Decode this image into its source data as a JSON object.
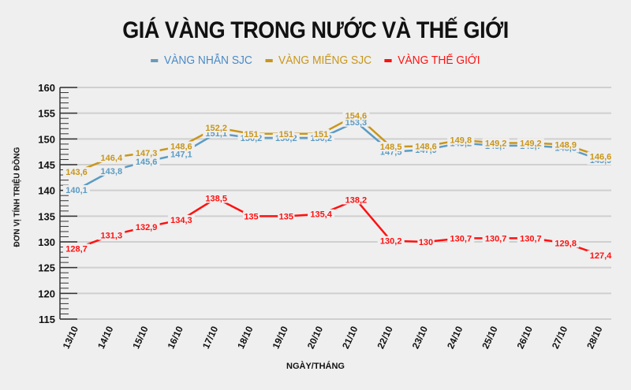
{
  "title": "GIÁ VÀNG TRONG NƯỚC VÀ THẾ GIỚI",
  "legend": [
    {
      "label": "VÀNG NHẪN SJC",
      "color": "#4a90c8"
    },
    {
      "label": "VÀNG MIẾNG SJC",
      "color": "#c9961a"
    },
    {
      "label": "VÀNG THẾ GIỚI",
      "color": "#ff1010"
    }
  ],
  "axes": {
    "ylabel": "ĐƠN VỊ TÍNH TRIỆU ĐỒNG",
    "xlabel": "NGÀY/THÁNG"
  },
  "chart_data": {
    "type": "line",
    "title": "GIÁ VÀNG TRONG NƯỚC VÀ THẾ GIỚI",
    "xlabel": "NGÀY/THÁNG",
    "ylabel": "ĐƠN VỊ TÍNH TRIỆU ĐỒNG",
    "ylim": [
      115,
      160
    ],
    "yticks": [
      115,
      120,
      125,
      130,
      135,
      140,
      145,
      150,
      155,
      160
    ],
    "grid": true,
    "legend_position": "top",
    "categories": [
      "13/10",
      "14/10",
      "15/10",
      "16/10",
      "17/10",
      "18/10",
      "19/10",
      "20/10",
      "21/10",
      "22/10",
      "23/10",
      "24/10",
      "25/10",
      "26/10",
      "27/10",
      "28/10"
    ],
    "series": [
      {
        "name": "VÀNG NHẪN SJC",
        "color": "#5b9bc4",
        "values": [
          140.1,
          143.8,
          145.6,
          147.1,
          151.1,
          150.2,
          150.2,
          150.2,
          153.3,
          147.5,
          147.9,
          149.2,
          148.7,
          148.7,
          148.3,
          145.9
        ]
      },
      {
        "name": "VÀNG MIẾNG SJC",
        "color": "#c9961a",
        "values": [
          143.6,
          146.4,
          147.3,
          148.6,
          152.2,
          151,
          151,
          151,
          154.6,
          148.5,
          148.6,
          149.8,
          149.2,
          149.2,
          148.9,
          146.6
        ]
      },
      {
        "name": "VÀNG THẾ GIỚI",
        "color": "#ff1010",
        "values": [
          128.7,
          131.3,
          132.9,
          134.3,
          138.5,
          135,
          135,
          135.4,
          138.2,
          130.2,
          130,
          130.7,
          130.7,
          130.7,
          129.8,
          127.4
        ]
      }
    ]
  }
}
